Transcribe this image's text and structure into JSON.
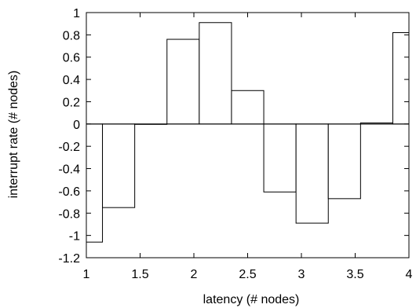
{
  "chart_data": {
    "type": "bar",
    "title": "",
    "xlabel": "latency (# nodes)",
    "ylabel": "interrupt rate (# nodes)",
    "xlim": [
      1,
      4
    ],
    "ylim": [
      -1.2,
      1
    ],
    "grid": false,
    "legend": "none",
    "bar_width": 0.3,
    "x": [
      1.0,
      1.3,
      1.6,
      1.9,
      2.2,
      2.5,
      2.8,
      3.1,
      3.4,
      3.7,
      4.0
    ],
    "values": [
      -1.06,
      -0.75,
      0.0,
      0.76,
      0.91,
      0.3,
      -0.61,
      -0.89,
      -0.67,
      0.01,
      0.82
    ],
    "xticks": [
      "1",
      "1.5",
      "2",
      "2.5",
      "3",
      "3.5",
      "4"
    ],
    "yticks": [
      "1",
      "0.8",
      "0.6",
      "0.4",
      "0.2",
      "0",
      "-0.2",
      "-0.4",
      "-0.6",
      "-0.8",
      "-1",
      "-1.2"
    ],
    "bar_fill": "#ffffff",
    "bar_stroke": "#000000"
  }
}
